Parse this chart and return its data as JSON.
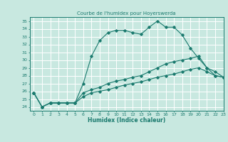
{
  "title": "Courbe de l'humidex pour Hoyerswerda",
  "xlabel": "Humidex (Indice chaleur)",
  "bg_color": "#c8e8e0",
  "grid_color": "#ffffff",
  "line_color": "#1a7a6e",
  "xlim": [
    -0.5,
    23
  ],
  "ylim": [
    23.5,
    35.5
  ],
  "xticks": [
    0,
    1,
    2,
    3,
    4,
    5,
    6,
    7,
    8,
    9,
    10,
    11,
    12,
    13,
    14,
    15,
    16,
    17,
    18,
    19,
    20,
    21,
    22,
    23
  ],
  "yticks": [
    24,
    25,
    26,
    27,
    28,
    29,
    30,
    31,
    32,
    33,
    34,
    35
  ],
  "series": [
    [
      25.8,
      24.0,
      24.5,
      24.5,
      24.5,
      24.5,
      27.0,
      30.5,
      32.5,
      33.5,
      33.8,
      33.8,
      33.5,
      33.3,
      34.2,
      35.0,
      34.2,
      34.2,
      33.2,
      31.5,
      30.2,
      29.0,
      28.5,
      27.8
    ],
    [
      25.8,
      24.0,
      24.5,
      24.5,
      24.5,
      24.5,
      25.8,
      26.2,
      26.5,
      27.0,
      27.3,
      27.5,
      27.8,
      28.0,
      28.5,
      29.0,
      29.5,
      29.8,
      30.0,
      30.2,
      30.5,
      29.0,
      28.0,
      27.8
    ],
    [
      25.8,
      24.0,
      24.5,
      24.5,
      24.5,
      24.5,
      25.3,
      25.8,
      26.0,
      26.2,
      26.5,
      26.8,
      27.0,
      27.2,
      27.5,
      27.8,
      28.0,
      28.2,
      28.5,
      28.8,
      29.0,
      28.5,
      28.0,
      27.8
    ]
  ],
  "title_fontsize": 5.0,
  "xlabel_fontsize": 5.5,
  "tick_fontsize": 4.5
}
